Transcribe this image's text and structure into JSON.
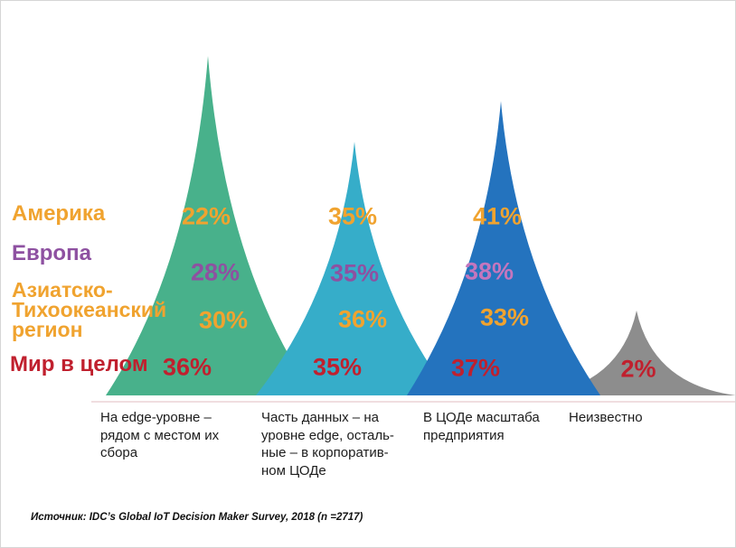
{
  "chart_data": {
    "type": "area",
    "subtype": "mountain-peaks",
    "categories": [
      "На edge-уровне – рядом с местом их сбора",
      "Часть данных – на уровне edge, остальные – в корпоративном ЦОДе",
      "В ЦОДе масштаба предприятия",
      "Неизвестно"
    ],
    "category_display_lines": [
      [
        "На edge-уровне –",
        "рядом с местом их",
        "сбора"
      ],
      [
        "Часть данных – на",
        "уровне edge, осталь-",
        "ные – в корпоратив-",
        "ном ЦОДе"
      ],
      [
        "В ЦОДе масштаба",
        "предприятия"
      ],
      [
        "Неизвестно"
      ]
    ],
    "series": [
      {
        "name": "Америка",
        "color": "#F0A32F",
        "values": [
          22,
          35,
          41,
          null
        ]
      },
      {
        "name": "Европа",
        "color": "#8E51A1",
        "values": [
          28,
          35,
          38,
          null
        ]
      },
      {
        "name": "Азиатско-Тихоокеанский регион",
        "color": "#F0A32F",
        "values": [
          30,
          36,
          33,
          null
        ]
      },
      {
        "name": "Мир в целом",
        "color": "#C0202E",
        "values": [
          36,
          35,
          37,
          2
        ]
      }
    ],
    "value_suffix": "%",
    "value_color_overrides": [
      {
        "series_index": 1,
        "category_index": 2,
        "color": "#C476BE"
      }
    ],
    "mountain_colors": [
      "#48B18B",
      "#36ADC9",
      "#2473BE",
      "#8D8D8D"
    ],
    "legend_position": "left",
    "grid": false,
    "source": "Источник: IDC’s Global IoT Decision Maker Survey, 2018 (n =2717)"
  }
}
